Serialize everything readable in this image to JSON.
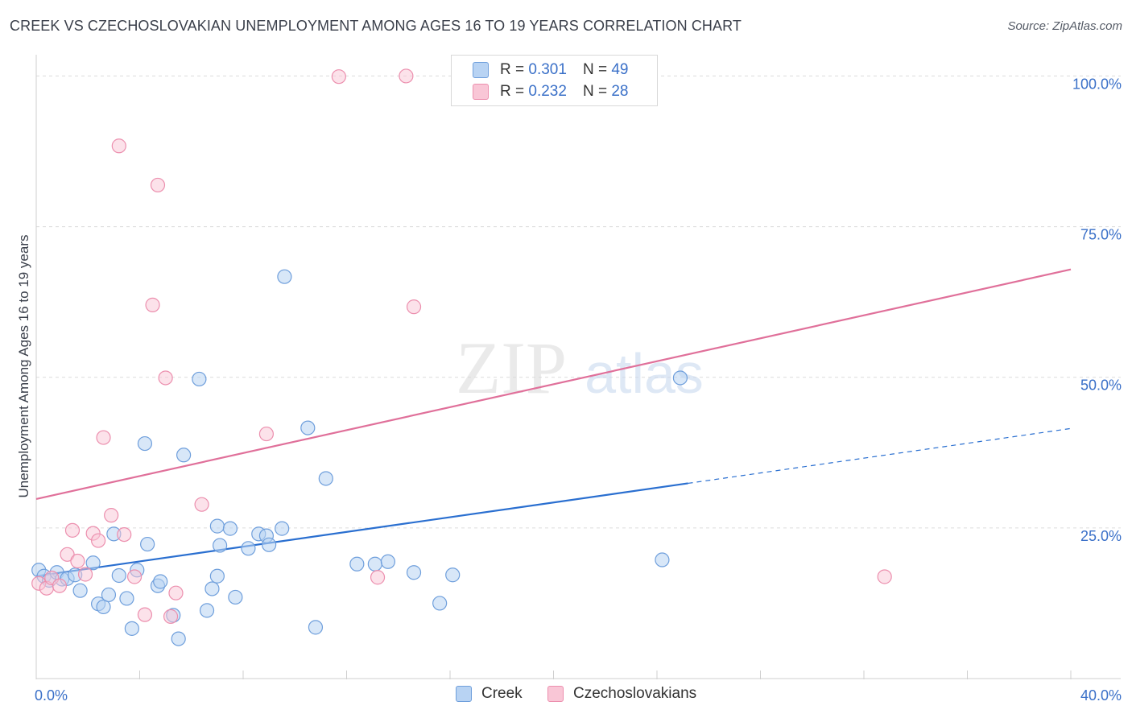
{
  "title": "CREEK VS CZECHOSLOVAKIAN UNEMPLOYMENT AMONG AGES 16 TO 19 YEARS CORRELATION CHART",
  "source": "Source: ZipAtlas.com",
  "watermark": {
    "zip": "ZIP",
    "atlas": "atlas"
  },
  "legend": {
    "r_label": "R =",
    "n_label": "N =",
    "rows": [
      {
        "r": "0.301",
        "n": "49"
      },
      {
        "r": "0.232",
        "n": "28"
      }
    ]
  },
  "colors": {
    "creek_fill": "#b8d3f3",
    "creek_stroke": "#6f9fdc",
    "creek_line": "#2a6fd0",
    "czech_fill": "#f9c6d6",
    "czech_stroke": "#ec8fae",
    "czech_line": "#e0709a",
    "tick_label": "#3a70c8",
    "grid": "#dcdcdc"
  },
  "chart_data": {
    "type": "scatter",
    "title": "CREEK VS CZECHOSLOVAKIAN UNEMPLOYMENT AMONG AGES 16 TO 19 YEARS CORRELATION CHART",
    "xlabel": "",
    "ylabel": "Unemployment Among Ages 16 to 19 years",
    "xlim": [
      0,
      40
    ],
    "ylim": [
      0,
      105
    ],
    "x_tick_labels": [
      "0.0%",
      "40.0%"
    ],
    "y_ticks": [
      25,
      50,
      75,
      100
    ],
    "y_tick_labels": [
      "25.0%",
      "50.0%",
      "75.0%",
      "100.0%"
    ],
    "grid": "horizontal dashed",
    "legend_position": "top-center and bottom",
    "series": [
      {
        "name": "Creek",
        "r": 0.301,
        "n": 49,
        "trend": {
          "x": [
            0,
            25.2
          ],
          "y": [
            17.0,
            32.4
          ],
          "dashed_to": [
            40,
            41.5
          ]
        },
        "points": [
          [
            0.1,
            18.0
          ],
          [
            0.3,
            17.0
          ],
          [
            0.5,
            16.3
          ],
          [
            0.8,
            17.6
          ],
          [
            1.0,
            16.5
          ],
          [
            1.2,
            16.6
          ],
          [
            1.5,
            17.2
          ],
          [
            1.7,
            14.6
          ],
          [
            2.2,
            19.2
          ],
          [
            2.4,
            12.4
          ],
          [
            2.6,
            11.9
          ],
          [
            2.8,
            13.9
          ],
          [
            3.0,
            24.0
          ],
          [
            3.2,
            17.1
          ],
          [
            3.5,
            13.3
          ],
          [
            3.7,
            8.3
          ],
          [
            3.9,
            18.0
          ],
          [
            4.2,
            39.0
          ],
          [
            4.3,
            22.3
          ],
          [
            4.7,
            15.4
          ],
          [
            4.8,
            16.1
          ],
          [
            5.3,
            10.5
          ],
          [
            5.5,
            6.6
          ],
          [
            5.7,
            37.1
          ],
          [
            6.3,
            49.7
          ],
          [
            6.6,
            11.3
          ],
          [
            6.8,
            14.9
          ],
          [
            7.0,
            25.3
          ],
          [
            7.1,
            22.1
          ],
          [
            7.5,
            24.9
          ],
          [
            7.7,
            13.5
          ],
          [
            8.2,
            21.6
          ],
          [
            8.6,
            24.0
          ],
          [
            8.9,
            23.7
          ],
          [
            9.0,
            22.2
          ],
          [
            9.5,
            24.9
          ],
          [
            9.6,
            66.7
          ],
          [
            10.5,
            41.6
          ],
          [
            10.8,
            8.5
          ],
          [
            11.2,
            33.2
          ],
          [
            12.4,
            19.0
          ],
          [
            13.1,
            19.0
          ],
          [
            13.6,
            19.4
          ],
          [
            14.6,
            17.6
          ],
          [
            15.6,
            12.5
          ],
          [
            16.1,
            17.2
          ],
          [
            24.2,
            19.7
          ],
          [
            24.9,
            49.9
          ],
          [
            7.0,
            17.0
          ]
        ]
      },
      {
        "name": "Czechoslovakians",
        "r": 0.232,
        "n": 28,
        "trend": {
          "x": [
            0,
            40
          ],
          "y": [
            29.8,
            67.9
          ]
        },
        "points": [
          [
            0.1,
            15.8
          ],
          [
            0.4,
            15.0
          ],
          [
            0.6,
            16.7
          ],
          [
            0.9,
            15.4
          ],
          [
            1.2,
            20.6
          ],
          [
            1.4,
            24.6
          ],
          [
            1.6,
            19.5
          ],
          [
            1.9,
            17.3
          ],
          [
            2.2,
            24.1
          ],
          [
            2.4,
            22.9
          ],
          [
            2.6,
            40.0
          ],
          [
            2.9,
            27.1
          ],
          [
            3.2,
            88.4
          ],
          [
            3.4,
            23.9
          ],
          [
            3.8,
            16.9
          ],
          [
            4.2,
            10.6
          ],
          [
            4.5,
            62.0
          ],
          [
            4.7,
            81.9
          ],
          [
            5.0,
            49.9
          ],
          [
            5.2,
            10.3
          ],
          [
            5.4,
            14.2
          ],
          [
            6.4,
            28.9
          ],
          [
            8.9,
            40.6
          ],
          [
            11.7,
            99.9
          ],
          [
            13.2,
            16.8
          ],
          [
            14.3,
            100.0
          ],
          [
            14.6,
            61.7
          ],
          [
            32.8,
            16.9
          ]
        ]
      }
    ]
  },
  "bottom_legend": [
    "Creek",
    "Czechoslovakians"
  ]
}
